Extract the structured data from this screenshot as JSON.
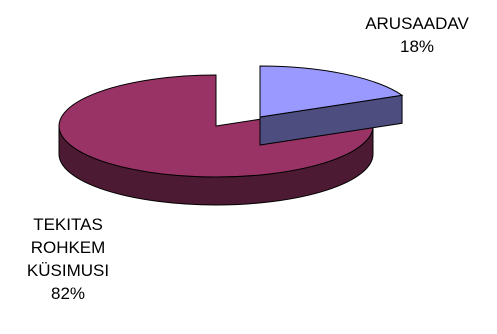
{
  "chart_data": {
    "type": "pie",
    "title": "",
    "labels": [
      {
        "lines": [
          "ARUSAADAV"
        ],
        "percent": "18%"
      },
      {
        "lines": [
          "TEKITAS",
          "ROHKEM",
          "KÜSIMUSI"
        ],
        "percent": "82%"
      }
    ],
    "values": [
      18,
      82
    ],
    "style": "3d-exploded",
    "colors": {
      "slices_top": [
        "#9999ff",
        "#993366"
      ],
      "slices_side": [
        "#4d4d80",
        "#4d1a33"
      ],
      "outline": "#000000"
    }
  }
}
